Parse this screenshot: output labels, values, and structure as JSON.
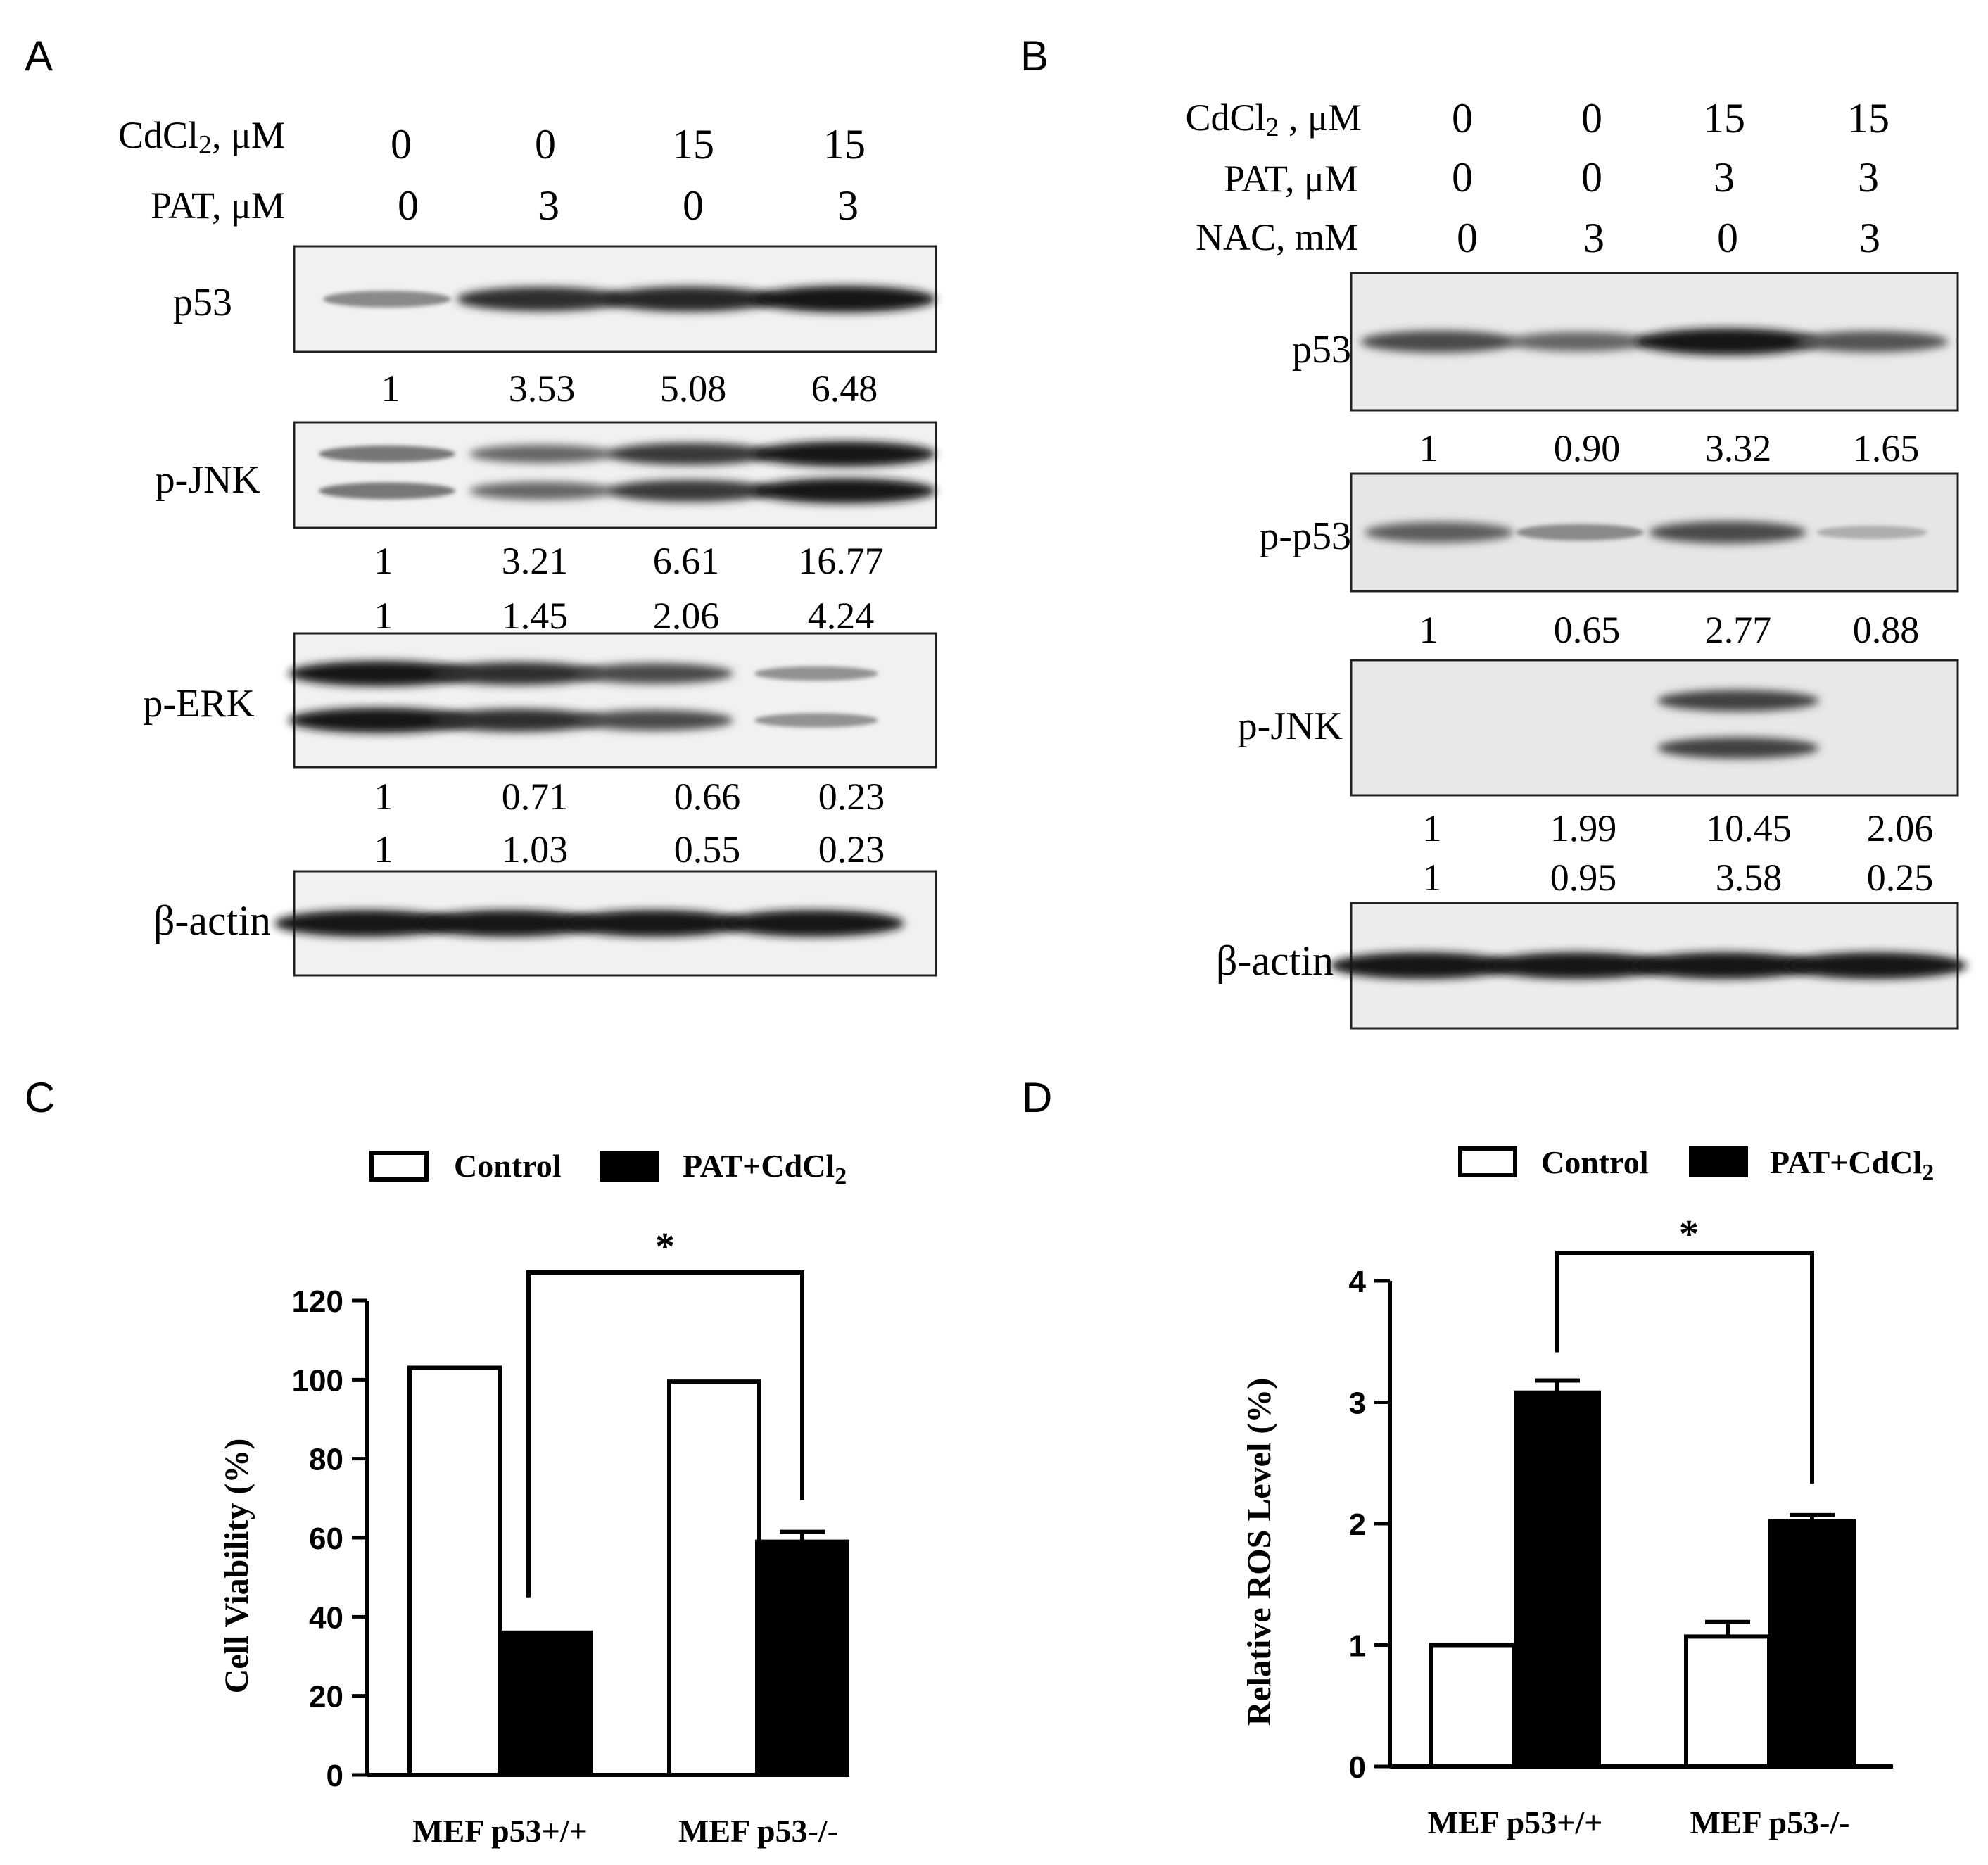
{
  "figure": {
    "panels": [
      {
        "label": "A",
        "conditions": [
          {
            "label": "CdCl2, μM",
            "values": [
              "0",
              "0",
              "15",
              "15"
            ]
          },
          {
            "label": "PAT, μM",
            "values": [
              "0",
              "3",
              "0",
              "3"
            ]
          }
        ],
        "blots": [
          {
            "label": "p53",
            "bands": "single",
            "intensity": [
              0.35,
              0.85,
              0.9,
              1.0
            ],
            "quant_rows": [
              [
                "1",
                "3.53",
                "5.08",
                "6.48"
              ]
            ]
          },
          {
            "label": "p-JNK",
            "bands": "double",
            "intensity": [
              0.45,
              0.55,
              0.8,
              1.0
            ],
            "quant_rows": [
              [
                "1",
                "3.21",
                "6.61",
                "16.77"
              ],
              [
                "1",
                "1.45",
                "2.06",
                "4.24"
              ]
            ]
          },
          {
            "label": "p-ERK",
            "bands": "double",
            "intensity": [
              1.0,
              0.85,
              0.7,
              0.3
            ],
            "quant_rows": [
              [
                "1",
                "0.71",
                "0.66",
                "0.23"
              ],
              [
                "1",
                "1.03",
                "0.55",
                "0.23"
              ]
            ]
          },
          {
            "label": "β-actin",
            "bands": "single",
            "intensity": [
              1.0,
              1.0,
              1.0,
              1.0
            ],
            "quant_rows": []
          }
        ]
      },
      {
        "label": "B",
        "conditions": [
          {
            "label": "CdCl2 , μM",
            "values": [
              "0",
              "0",
              "15",
              "15"
            ]
          },
          {
            "label": "PAT, μM",
            "values": [
              "0",
              "0",
              "3",
              "3"
            ]
          },
          {
            "label": "NAC, mM",
            "values": [
              "0",
              "3",
              "0",
              "3"
            ]
          }
        ],
        "blots": [
          {
            "label": "p53",
            "bands": "single",
            "intensity": [
              0.7,
              0.55,
              1.0,
              0.65
            ],
            "quant_rows": [
              [
                "1",
                "0.90",
                "3.32",
                "1.65"
              ]
            ]
          },
          {
            "label": "p-p53",
            "bands": "single",
            "intensity": [
              0.6,
              0.35,
              0.7,
              0.15
            ],
            "quant_rows": [
              [
                "1",
                "0.65",
                "2.77",
                "0.88"
              ]
            ]
          },
          {
            "label": "p-JNK",
            "bands": "double",
            "intensity": [
              0.0,
              0.0,
              0.75,
              0.0
            ],
            "quant_rows": [
              [
                "1",
                "1.99",
                "10.45",
                "2.06"
              ],
              [
                "1",
                "0.95",
                "3.58",
                "0.25"
              ]
            ]
          },
          {
            "label": "β-actin",
            "bands": "single",
            "intensity": [
              1.0,
              1.0,
              1.0,
              1.0
            ],
            "quant_rows": []
          }
        ]
      },
      {
        "label": "C",
        "legend": [
          "Control",
          "PAT+CdCl2"
        ],
        "significance": "*"
      },
      {
        "label": "D",
        "legend": [
          "Control",
          "PAT+CdCl2"
        ],
        "significance": "*"
      }
    ]
  },
  "chart_data": [
    {
      "type": "bar",
      "panel": "C",
      "categories": [
        "MEF p53+/+",
        "MEF p53-/-"
      ],
      "series": [
        {
          "name": "Control",
          "values": [
            103,
            99.5
          ],
          "errors": [
            0,
            0
          ]
        },
        {
          "name": "PAT+CdCl2",
          "values": [
            36,
            59
          ],
          "errors": [
            0,
            2.5
          ]
        }
      ],
      "ylabel": "Cell Viability (%)",
      "xlabel": "",
      "ylim": [
        0,
        120
      ],
      "yticks": [
        0,
        20,
        40,
        60,
        80,
        100,
        120
      ],
      "legend_position": "top",
      "grid": false
    },
    {
      "type": "bar",
      "panel": "D",
      "categories": [
        "MEF p53+/+",
        "MEF p53-/-"
      ],
      "series": [
        {
          "name": "Control",
          "values": [
            1.0,
            1.07
          ],
          "errors": [
            0,
            0.12
          ]
        },
        {
          "name": "PAT+CdCl2",
          "values": [
            3.08,
            2.02
          ],
          "errors": [
            0.1,
            0.05
          ]
        }
      ],
      "ylabel": "Relative ROS Level (%)",
      "xlabel": "",
      "ylim": [
        0,
        4
      ],
      "yticks": [
        0,
        1,
        2,
        3,
        4
      ],
      "legend_position": "top",
      "grid": false
    }
  ]
}
